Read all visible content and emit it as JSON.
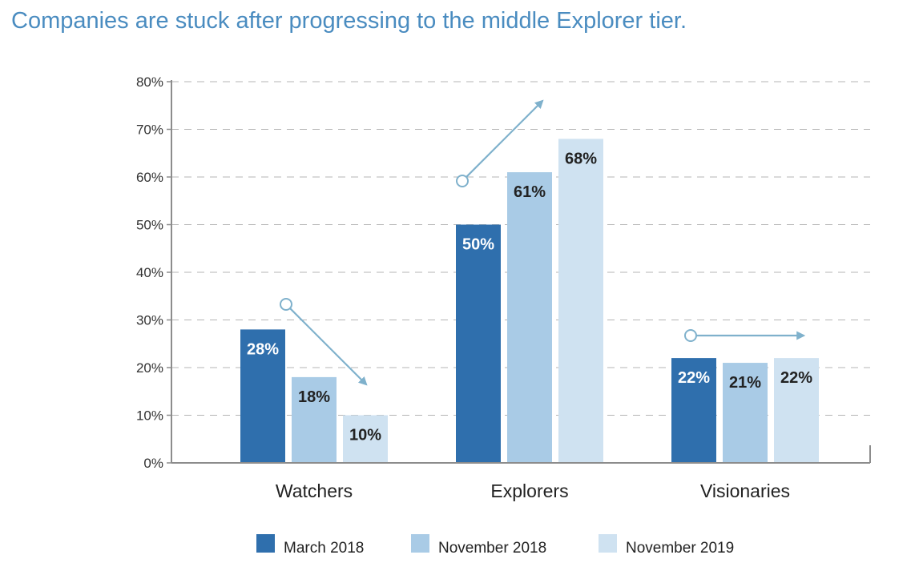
{
  "title": "Companies are stuck after progressing to the middle Explorer tier.",
  "colors": {
    "march_2018": "#2f6fad",
    "november_2018": "#a9cbe6",
    "november_2019": "#cfe2f1",
    "arrow": "#7fb1cc",
    "axis": "#8c8c8c",
    "grid": "#b5b5b5",
    "title": "#4a8cc0"
  },
  "chart_data": {
    "type": "bar",
    "categories": [
      "Watchers",
      "Explorers",
      "Visionaries"
    ],
    "series": [
      {
        "name": "March 2018",
        "values": [
          28,
          50,
          22
        ],
        "labels": [
          "28%",
          "50%",
          "22%"
        ]
      },
      {
        "name": "November 2018",
        "values": [
          18,
          61,
          21
        ],
        "labels": [
          "18%",
          "61%",
          "21%"
        ]
      },
      {
        "name": "November 2019",
        "values": [
          10,
          68,
          22
        ],
        "labels": [
          "10%",
          "68%",
          "22%"
        ]
      }
    ],
    "yticks": [
      "0%",
      "10%",
      "20%",
      "30%",
      "40%",
      "50%",
      "60%",
      "70%",
      "80%"
    ],
    "ylim": [
      0,
      80
    ],
    "grid": true,
    "legend_position": "bottom",
    "trend_arrows": [
      "down",
      "up",
      "flat"
    ]
  }
}
